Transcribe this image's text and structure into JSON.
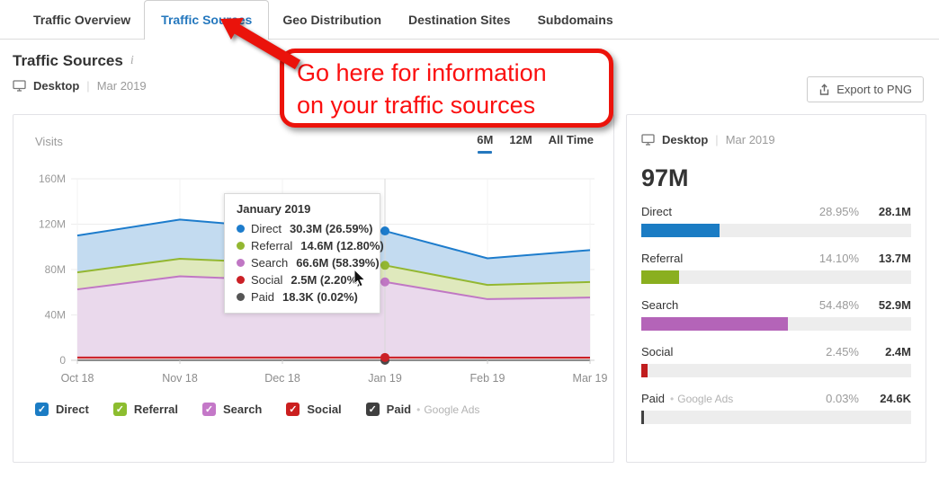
{
  "tabs": [
    {
      "label": "Traffic Overview",
      "active": false
    },
    {
      "label": "Traffic Sources",
      "active": true
    },
    {
      "label": "Geo Distribution",
      "active": false
    },
    {
      "label": "Destination Sites",
      "active": false
    },
    {
      "label": "Subdomains",
      "active": false
    }
  ],
  "header": {
    "title": "Traffic Sources",
    "info_icon": "i",
    "device": "Desktop",
    "separator": "|",
    "period": "Mar 2019",
    "export_label": "Export to PNG"
  },
  "annotation": {
    "line1": "Go here for information",
    "line2": "on your traffic sources"
  },
  "chart_panel": {
    "metric_label": "Visits",
    "ranges": [
      {
        "label": "6M",
        "active": true
      },
      {
        "label": "12M",
        "active": false
      },
      {
        "label": "All Time",
        "active": false
      }
    ]
  },
  "chart_data": {
    "type": "area",
    "stacked": true,
    "title": "Visits",
    "x": [
      "Oct 18",
      "Nov 18",
      "Dec 18",
      "Jan 19",
      "Feb 19",
      "Mar 19"
    ],
    "ylabel": "Visits (millions)",
    "ylim": [
      0,
      160
    ],
    "yticks": [
      {
        "v": 0,
        "label": "0"
      },
      {
        "v": 40,
        "label": "40M"
      },
      {
        "v": 80,
        "label": "80M"
      },
      {
        "v": 120,
        "label": "120M"
      },
      {
        "v": 160,
        "label": "160M"
      }
    ],
    "highlight_index": 3,
    "series": [
      {
        "name": "Paid",
        "color": "#4a4a4a",
        "fill": "#d8d8d8",
        "values": [
          0.02,
          0.02,
          0.02,
          0.018,
          0.02,
          0.025
        ]
      },
      {
        "name": "Social",
        "color": "#cb2026",
        "fill": "#f0c7c7",
        "values": [
          2.5,
          2.5,
          2.5,
          2.5,
          2.4,
          2.4
        ]
      },
      {
        "name": "Search",
        "color": "#c077c4",
        "fill": "#ead9ec",
        "values": [
          60.0,
          71.5,
          68.0,
          66.6,
          51.5,
          52.9
        ]
      },
      {
        "name": "Referral",
        "color": "#93b731",
        "fill": "#dfe9bd",
        "values": [
          15.0,
          15.5,
          15.0,
          14.6,
          12.5,
          13.7
        ]
      },
      {
        "name": "Direct",
        "color": "#1d7ccc",
        "fill": "#c3dbf0",
        "values": [
          32.5,
          34.5,
          31.0,
          30.3,
          23.5,
          28.1
        ]
      }
    ]
  },
  "tooltip": {
    "title": "January 2019",
    "rows": [
      {
        "name": "Direct",
        "value": "30.3M (26.59%)",
        "color": "#1d7ccc"
      },
      {
        "name": "Referral",
        "value": "14.6M (12.80%)",
        "color": "#93b731"
      },
      {
        "name": "Search",
        "value": "66.6M (58.39%)",
        "color": "#c077c4"
      },
      {
        "name": "Social",
        "value": "2.5M (2.20%)",
        "color": "#cb2026"
      },
      {
        "name": "Paid",
        "value": "18.3K (0.02%)",
        "color": "#555555"
      }
    ]
  },
  "legend": {
    "items": [
      {
        "label": "Direct",
        "color": "#1b7cc4",
        "check": "✓",
        "note": ""
      },
      {
        "label": "Referral",
        "color": "#8cbd2f",
        "check": "✓",
        "note": ""
      },
      {
        "label": "Search",
        "color": "#c478c8",
        "check": "✓",
        "note": ""
      },
      {
        "label": "Social",
        "color": "#cb1f1f",
        "check": "✓",
        "note": ""
      },
      {
        "label": "Paid",
        "color": "#3f3f3f",
        "check": "✓",
        "note": "Google Ads"
      }
    ]
  },
  "side_panel": {
    "device": "Desktop",
    "separator": "|",
    "period": "Mar 2019",
    "total": "97M",
    "rows": [
      {
        "label": "Direct",
        "note": "",
        "pct": "28.95%",
        "pct_num": 28.95,
        "value": "28.1M",
        "color": "#1b7cc4"
      },
      {
        "label": "Referral",
        "note": "",
        "pct": "14.10%",
        "pct_num": 14.1,
        "value": "13.7M",
        "color": "#8aaf1f"
      },
      {
        "label": "Search",
        "note": "",
        "pct": "54.48%",
        "pct_num": 54.48,
        "value": "52.9M",
        "color": "#b464b8"
      },
      {
        "label": "Social",
        "note": "",
        "pct": "2.45%",
        "pct_num": 2.45,
        "value": "2.4M",
        "color": "#c01e1f"
      },
      {
        "label": "Paid",
        "note": "Google Ads",
        "pct": "0.03%",
        "pct_num": 0.03,
        "value": "24.6K",
        "color": "#414141"
      }
    ]
  }
}
